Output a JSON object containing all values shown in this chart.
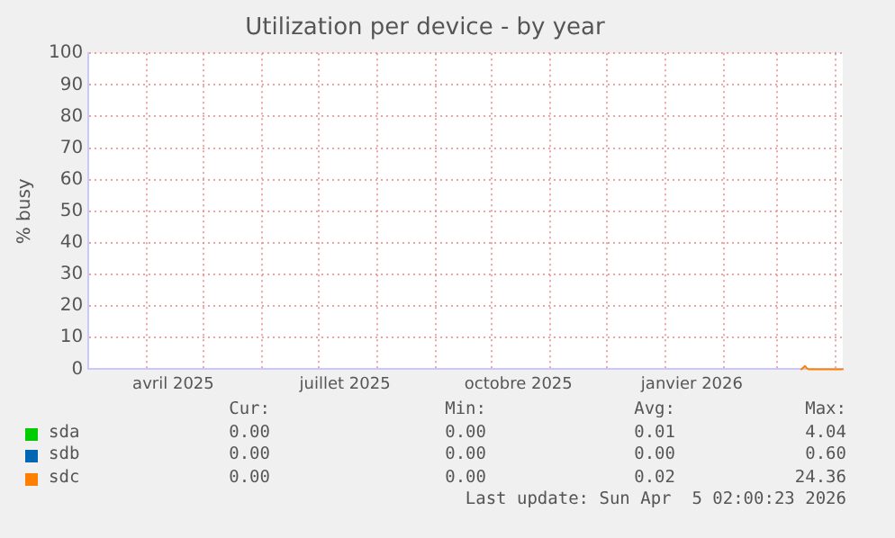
{
  "chart_data": {
    "type": "line",
    "title": "Utilization per device - by year",
    "ylabel": "% busy",
    "x": [
      "2026-03-14",
      "2026-03-16",
      "2026-03-17",
      "2026-03-18",
      "2026-03-20",
      "2026-03-25",
      "2026-03-30",
      "2026-04-05"
    ],
    "series": [
      {
        "name": "sda",
        "color": "#00cc00",
        "values": [
          null,
          null,
          null,
          null,
          null,
          null,
          null,
          null
        ]
      },
      {
        "name": "sdb",
        "color": "#0066b3",
        "values": [
          null,
          null,
          null,
          null,
          null,
          null,
          null,
          null
        ]
      },
      {
        "name": "sdc",
        "color": "#ff8000",
        "values": [
          0,
          1,
          0.3,
          0,
          0,
          0,
          0,
          0
        ]
      }
    ],
    "xlim": [
      "2025-03-01",
      "2026-04-05"
    ],
    "xticks": [
      {
        "value": "2025-03-01",
        "label": null
      },
      {
        "value": "2025-04-01",
        "label": null
      },
      {
        "value": "2025-04-15",
        "label": "avril 2025"
      },
      {
        "value": "2025-05-01",
        "label": null
      },
      {
        "value": "2025-06-01",
        "label": null
      },
      {
        "value": "2025-07-01",
        "label": null
      },
      {
        "value": "2025-07-15",
        "label": "juillet 2025"
      },
      {
        "value": "2025-08-01",
        "label": null
      },
      {
        "value": "2025-09-01",
        "label": null
      },
      {
        "value": "2025-10-01",
        "label": null
      },
      {
        "value": "2025-10-15",
        "label": "octobre 2025"
      },
      {
        "value": "2025-11-01",
        "label": null
      },
      {
        "value": "2025-12-01",
        "label": null
      },
      {
        "value": "2026-01-01",
        "label": null
      },
      {
        "value": "2026-01-15",
        "label": "janvier 2026"
      },
      {
        "value": "2026-02-01",
        "label": null
      },
      {
        "value": "2026-03-01",
        "label": null
      },
      {
        "value": "2026-04-01",
        "label": null
      }
    ],
    "ylim": [
      0,
      100
    ],
    "yticks": [
      0,
      10,
      20,
      30,
      40,
      50,
      60,
      70,
      80,
      90,
      100
    ],
    "grid": true,
    "legend": "bottom",
    "annotations": [
      "Cur:",
      "Min:",
      "Avg:",
      "Max:",
      "0.00",
      "0.00",
      "0.01",
      "4.04",
      "0.00",
      "0.00",
      "0.00",
      "0.60",
      "0.00",
      "0.00",
      "0.02",
      "24.36",
      "Last update: Sun Apr  5 02:00:23 2026"
    ]
  }
}
